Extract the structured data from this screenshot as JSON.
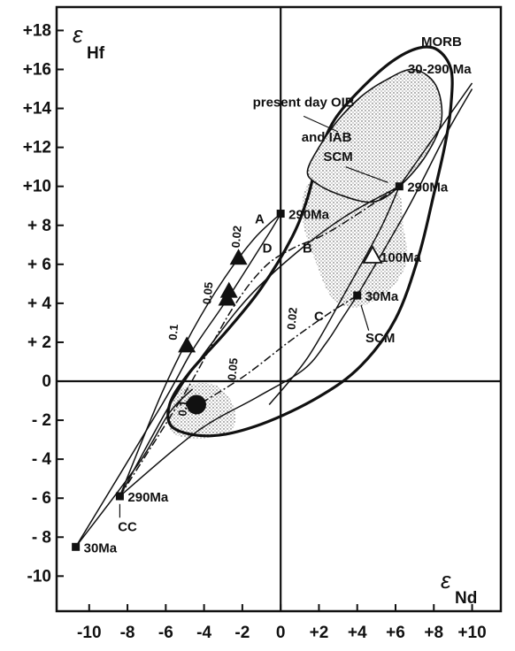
{
  "chart_data": {
    "type": "scatter",
    "title": "",
    "xlabel": {
      "symbol": "ε",
      "subscript": "Nd"
    },
    "ylabel": {
      "symbol": "ε",
      "subscript": "Hf"
    },
    "xlim": [
      -11.7,
      11.5
    ],
    "ylim": [
      -11.8,
      19.2
    ],
    "x_ticks": [
      -10,
      -8,
      -6,
      -4,
      -2,
      0,
      2,
      4,
      6,
      8,
      10
    ],
    "x_tick_labels": [
      "-10",
      "-8",
      "-6",
      "-4",
      "-2",
      "0",
      "+2",
      "+4",
      "+6",
      "+8",
      "+10"
    ],
    "y_ticks": [
      18,
      16,
      14,
      12,
      10,
      8,
      6,
      4,
      2,
      0,
      -2,
      -4,
      -6,
      -8,
      -10
    ],
    "y_tick_labels": [
      "+18",
      "+16",
      "+14",
      "+12",
      "+10",
      "+ 8",
      "+ 6",
      "+ 4",
      "+ 2",
      "0",
      "- 2",
      "- 4",
      "- 6",
      "- 8",
      "-10"
    ],
    "grid": false,
    "regions": [
      {
        "label": "MORB 30-290 Ma",
        "fill": "none",
        "outline": [
          [
            -5.6,
            -2.4
          ],
          [
            -5.8,
            -1.2
          ],
          [
            -4.8,
            0.4
          ],
          [
            -2.8,
            2.6
          ],
          [
            -1.0,
            4.8
          ],
          [
            0.6,
            7.4
          ],
          [
            1.4,
            9.4
          ],
          [
            2.0,
            11.6
          ],
          [
            2.8,
            13.4
          ],
          [
            4.2,
            15.0
          ],
          [
            5.8,
            16.4
          ],
          [
            7.2,
            17.1
          ],
          [
            8.2,
            17.0
          ],
          [
            8.9,
            16.0
          ],
          [
            8.9,
            14.2
          ],
          [
            8.6,
            12.2
          ],
          [
            8.0,
            9.6
          ],
          [
            7.2,
            6.4
          ],
          [
            6.0,
            3.2
          ],
          [
            4.2,
            0.8
          ],
          [
            2.0,
            -0.8
          ],
          [
            -1.0,
            -2.2
          ],
          [
            -3.6,
            -2.8
          ]
        ]
      },
      {
        "label": "present day OIB and IAB",
        "fill": "stipple",
        "outline": [
          [
            1.8,
            10.2
          ],
          [
            3.0,
            9.6
          ],
          [
            4.8,
            9.2
          ],
          [
            6.2,
            10.0
          ],
          [
            7.6,
            11.6
          ],
          [
            8.4,
            13.4
          ],
          [
            8.1,
            15.2
          ],
          [
            6.9,
            16.0
          ],
          [
            5.4,
            15.4
          ],
          [
            4.2,
            14.6
          ],
          [
            3.0,
            13.4
          ],
          [
            2.0,
            12.0
          ],
          [
            1.4,
            10.8
          ]
        ]
      }
    ],
    "stipple_regions": [
      [
        [
          -5.8,
          -2.4
        ],
        [
          -5.6,
          -1.0
        ],
        [
          -4.8,
          -0.2
        ],
        [
          -3.4,
          -0.2
        ],
        [
          -2.5,
          -1.2
        ],
        [
          -2.5,
          -2.4
        ],
        [
          -3.8,
          -2.9
        ],
        [
          -5.0,
          -2.9
        ]
      ],
      [
        [
          1.2,
          9.6
        ],
        [
          2.0,
          10.6
        ],
        [
          3.6,
          10.4
        ],
        [
          5.2,
          10.0
        ],
        [
          6.2,
          9.6
        ],
        [
          6.4,
          8.0
        ],
        [
          6.6,
          6.2
        ],
        [
          5.8,
          4.8
        ],
        [
          4.6,
          4.0
        ],
        [
          3.6,
          3.8
        ],
        [
          2.6,
          4.4
        ],
        [
          1.8,
          6.2
        ],
        [
          1.2,
          8.0
        ]
      ]
    ],
    "curves": [
      {
        "name": "A",
        "style": "solid",
        "points": [
          [
            -8.4,
            -5.9
          ],
          [
            -6.2,
            -0.6
          ],
          [
            -4.6,
            2.6
          ],
          [
            -3.0,
            5.2
          ],
          [
            -1.4,
            7.3
          ],
          [
            0,
            8.6
          ]
        ]
      },
      {
        "name": "B",
        "style": "solid",
        "points": [
          [
            -8.4,
            -5.9
          ],
          [
            -5.6,
            -0.9
          ],
          [
            -3.4,
            2.2
          ],
          [
            -1.4,
            4.6
          ],
          [
            1.2,
            6.9
          ],
          [
            3.6,
            8.6
          ],
          [
            6.2,
            10.0
          ]
        ]
      },
      {
        "name": "D",
        "style": "dashdot",
        "points": [
          [
            -8.4,
            -5.9
          ],
          [
            -5.0,
            -0.6
          ],
          [
            -2.6,
            3.6
          ],
          [
            -0.9,
            5.8
          ],
          [
            0.6,
            6.8
          ],
          [
            2.6,
            7.7
          ],
          [
            6.2,
            10.0
          ]
        ]
      },
      {
        "name": "C",
        "style": "solid",
        "points": [
          [
            -8.4,
            -5.9
          ],
          [
            -4.4,
            -2.6
          ],
          [
            -1.2,
            -0.8
          ],
          [
            1.2,
            0.6
          ],
          [
            2.4,
            2.0
          ],
          [
            3.2,
            3.2
          ],
          [
            4.0,
            4.4
          ]
        ]
      },
      {
        "name": "C-dashdot",
        "style": "dashdot",
        "points": [
          [
            -4.8,
            -1.5
          ],
          [
            -2.0,
            0.2
          ],
          [
            0.4,
            2.0
          ],
          [
            2.4,
            3.4
          ],
          [
            4.0,
            4.4
          ]
        ]
      },
      {
        "name": "CC30-OIB",
        "style": "solid",
        "points": [
          [
            -10.7,
            -8.5
          ],
          [
            -6.2,
            -1.2
          ],
          [
            -4.6,
            1.6
          ],
          [
            -2.8,
            4.2
          ],
          [
            -0.6,
            7.6
          ],
          [
            0,
            8.6
          ]
        ]
      },
      {
        "name": "CC30-line2",
        "style": "solid",
        "points": [
          [
            -10.7,
            -8.5
          ],
          [
            -7.4,
            -4.2
          ],
          [
            -5.8,
            -1.6
          ],
          [
            -4.6,
            -0.4
          ]
        ]
      },
      {
        "name": "mix-290-10",
        "style": "solid",
        "points": [
          [
            6.2,
            10.0
          ],
          [
            10.0,
            15.3
          ]
        ]
      },
      {
        "name": "mix-30-10",
        "style": "solid",
        "points": [
          [
            4.0,
            4.4
          ],
          [
            6.6,
            8.8
          ],
          [
            8.6,
            12.6
          ],
          [
            10.0,
            15.0
          ]
        ]
      },
      {
        "name": "SCM-diag",
        "style": "solid",
        "points": [
          [
            -0.6,
            -1.2
          ],
          [
            1.4,
            1.2
          ],
          [
            3.4,
            4.6
          ],
          [
            5.2,
            7.8
          ],
          [
            6.2,
            10.0
          ]
        ]
      }
    ],
    "points": [
      {
        "label": "290Ma",
        "marker": "square",
        "x": 0.0,
        "y": 8.6
      },
      {
        "label": "290Ma",
        "marker": "square",
        "x": 6.2,
        "y": 10.0
      },
      {
        "label": "30Ma",
        "marker": "square",
        "x": 4.0,
        "y": 4.4
      },
      {
        "label": "290Ma",
        "marker": "square",
        "x": -8.4,
        "y": -5.9
      },
      {
        "label": "30Ma",
        "marker": "square",
        "x": -10.7,
        "y": -8.5
      },
      {
        "label": "",
        "marker": "triangle-filled",
        "x": -2.2,
        "y": 6.3
      },
      {
        "label": "",
        "marker": "triangle-filled",
        "x": -2.7,
        "y": 4.6
      },
      {
        "label": "",
        "marker": "triangle-filled",
        "x": -2.8,
        "y": 4.2
      },
      {
        "label": "",
        "marker": "triangle-filled",
        "x": -4.9,
        "y": 1.8
      },
      {
        "label": "100Ma",
        "marker": "triangle-open",
        "x": 4.8,
        "y": 6.4
      },
      {
        "label": "",
        "marker": "circle-filled",
        "x": -4.4,
        "y": -1.2
      }
    ],
    "annotations": [
      {
        "text": "MORB",
        "x": 8.4,
        "y": 17.2
      },
      {
        "text": "30-290 Ma",
        "x": 8.3,
        "y": 15.8
      },
      {
        "text": "present day OIB",
        "x": 1.2,
        "y": 14.1
      },
      {
        "text": "and IAB",
        "x": 2.4,
        "y": 12.3
      },
      {
        "text": "SCM",
        "x": 3.0,
        "y": 11.3
      },
      {
        "text": "SCM",
        "x": 5.2,
        "y": 2.0
      },
      {
        "text": "A",
        "x": -1.1,
        "y": 8.1
      },
      {
        "text": "B",
        "x": 1.4,
        "y": 6.6
      },
      {
        "text": "C",
        "x": 2.0,
        "y": 3.1
      },
      {
        "text": "D",
        "x": -0.7,
        "y": 6.6
      },
      {
        "text": "CC",
        "x": -8.0,
        "y": -7.7
      },
      {
        "text": "0.02",
        "x": -2.1,
        "y": 7.4,
        "rotate": -85
      },
      {
        "text": "0.05",
        "x": -3.6,
        "y": 4.5,
        "rotate": -85
      },
      {
        "text": "0.1",
        "x": -5.4,
        "y": 2.5,
        "rotate": -85
      },
      {
        "text": "0.02",
        "x": 0.8,
        "y": 3.2,
        "rotate": -85
      },
      {
        "text": "0.05",
        "x": -2.3,
        "y": 0.6,
        "rotate": -85
      },
      {
        "text": "0.1",
        "x": -4.9,
        "y": -1.4,
        "rotate": -85
      }
    ]
  }
}
